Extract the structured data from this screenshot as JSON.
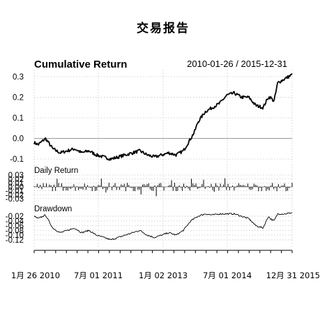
{
  "chart_data": {
    "type": "line",
    "title": "交易报告",
    "date_range": "2010-01-26 / 2015-12-31",
    "x_ticks": [
      "1月 26 2010",
      "7月 01 2011",
      "1月 02 2013",
      "7月 01 2014",
      "12月 31 2015"
    ],
    "panels": [
      {
        "title": "Cumulative Return",
        "ylim": [
          -0.12,
          0.32
        ],
        "yticks": [
          "0.3",
          "0.2",
          "0.1",
          "0.0",
          "-0.1"
        ],
        "ytick_values": [
          0.3,
          0.2,
          0.1,
          0.0,
          -0.1
        ],
        "reference_line": 0.0,
        "series": [
          {
            "x": [
              "2010-01-26",
              "2010-03-01",
              "2010-05-01",
              "2010-07-01",
              "2010-09-01",
              "2010-11-01",
              "2011-01-01",
              "2011-03-01",
              "2011-05-01",
              "2011-07-01",
              "2011-09-01",
              "2011-11-01",
              "2012-01-01",
              "2012-03-01",
              "2012-05-01",
              "2012-07-01",
              "2012-09-01",
              "2012-11-01",
              "2013-01-01",
              "2013-03-01",
              "2013-05-01",
              "2013-07-01",
              "2013-08-01",
              "2013-09-01",
              "2013-10-01",
              "2013-11-01",
              "2014-01-01",
              "2014-03-01",
              "2014-05-01",
              "2014-07-01",
              "2014-09-01",
              "2014-11-01",
              "2015-01-01",
              "2015-03-01",
              "2015-05-01",
              "2015-06-15",
              "2015-07-01",
              "2015-08-01",
              "2015-09-01",
              "2015-11-01",
              "2015-12-31"
            ],
            "values": [
              -0.02,
              -0.03,
              0.0,
              -0.05,
              -0.07,
              -0.06,
              -0.05,
              -0.07,
              -0.06,
              -0.08,
              -0.09,
              -0.1,
              -0.09,
              -0.08,
              -0.07,
              -0.06,
              -0.08,
              -0.09,
              -0.08,
              -0.07,
              -0.08,
              -0.06,
              -0.03,
              0.0,
              0.03,
              0.08,
              0.13,
              0.15,
              0.17,
              0.21,
              0.22,
              0.2,
              0.2,
              0.16,
              0.15,
              0.2,
              0.2,
              0.18,
              0.27,
              0.29,
              0.31
            ]
          }
        ]
      },
      {
        "title": "Daily Return",
        "ylim": [
          -0.032,
          0.032
        ],
        "yticks": [
          "0.03",
          "0.02",
          "0.01",
          "0.00",
          "-0.01",
          "-0.02",
          "-0.03"
        ],
        "ytick_values": [
          0.03,
          0.02,
          0.01,
          0.0,
          -0.01,
          -0.02,
          -0.03
        ],
        "reference_line": 0.0
      },
      {
        "title": "Drawdown",
        "ylim": [
          -0.135,
          -0.005
        ],
        "yticks": [
          "-0.02",
          "-0.04",
          "-0.06",
          "-0.08",
          "-0.10",
          "-0.12"
        ],
        "ytick_values": [
          -0.02,
          -0.04,
          -0.06,
          -0.08,
          -0.1,
          -0.12
        ],
        "series": [
          {
            "x": [
              "2010-01-26",
              "2010-03-01",
              "2010-05-01",
              "2010-07-01",
              "2010-09-01",
              "2010-11-01",
              "2011-01-01",
              "2011-03-01",
              "2011-05-01",
              "2011-07-01",
              "2011-09-01",
              "2011-11-01",
              "2012-01-01",
              "2012-03-01",
              "2012-05-01",
              "2012-07-01",
              "2012-09-01",
              "2012-11-01",
              "2013-01-01",
              "2013-03-01",
              "2013-05-01",
              "2013-07-01",
              "2013-08-01",
              "2013-09-01",
              "2013-10-01",
              "2013-11-01",
              "2014-01-01",
              "2014-03-01",
              "2014-05-01",
              "2014-07-01",
              "2014-09-01",
              "2014-11-01",
              "2015-01-01",
              "2015-03-01",
              "2015-05-01",
              "2015-06-15",
              "2015-07-01",
              "2015-08-01",
              "2015-09-01",
              "2015-11-01",
              "2015-12-31"
            ],
            "values": [
              -0.02,
              -0.03,
              -0.015,
              -0.07,
              -0.09,
              -0.08,
              -0.07,
              -0.09,
              -0.08,
              -0.1,
              -0.11,
              -0.12,
              -0.11,
              -0.1,
              -0.09,
              -0.08,
              -0.1,
              -0.11,
              -0.1,
              -0.09,
              -0.1,
              -0.08,
              -0.06,
              -0.04,
              -0.03,
              -0.02,
              -0.01,
              -0.015,
              -0.01,
              -0.01,
              -0.01,
              -0.02,
              -0.03,
              -0.06,
              -0.07,
              -0.02,
              -0.03,
              -0.04,
              -0.01,
              -0.01,
              -0.005
            ]
          }
        ]
      }
    ]
  }
}
